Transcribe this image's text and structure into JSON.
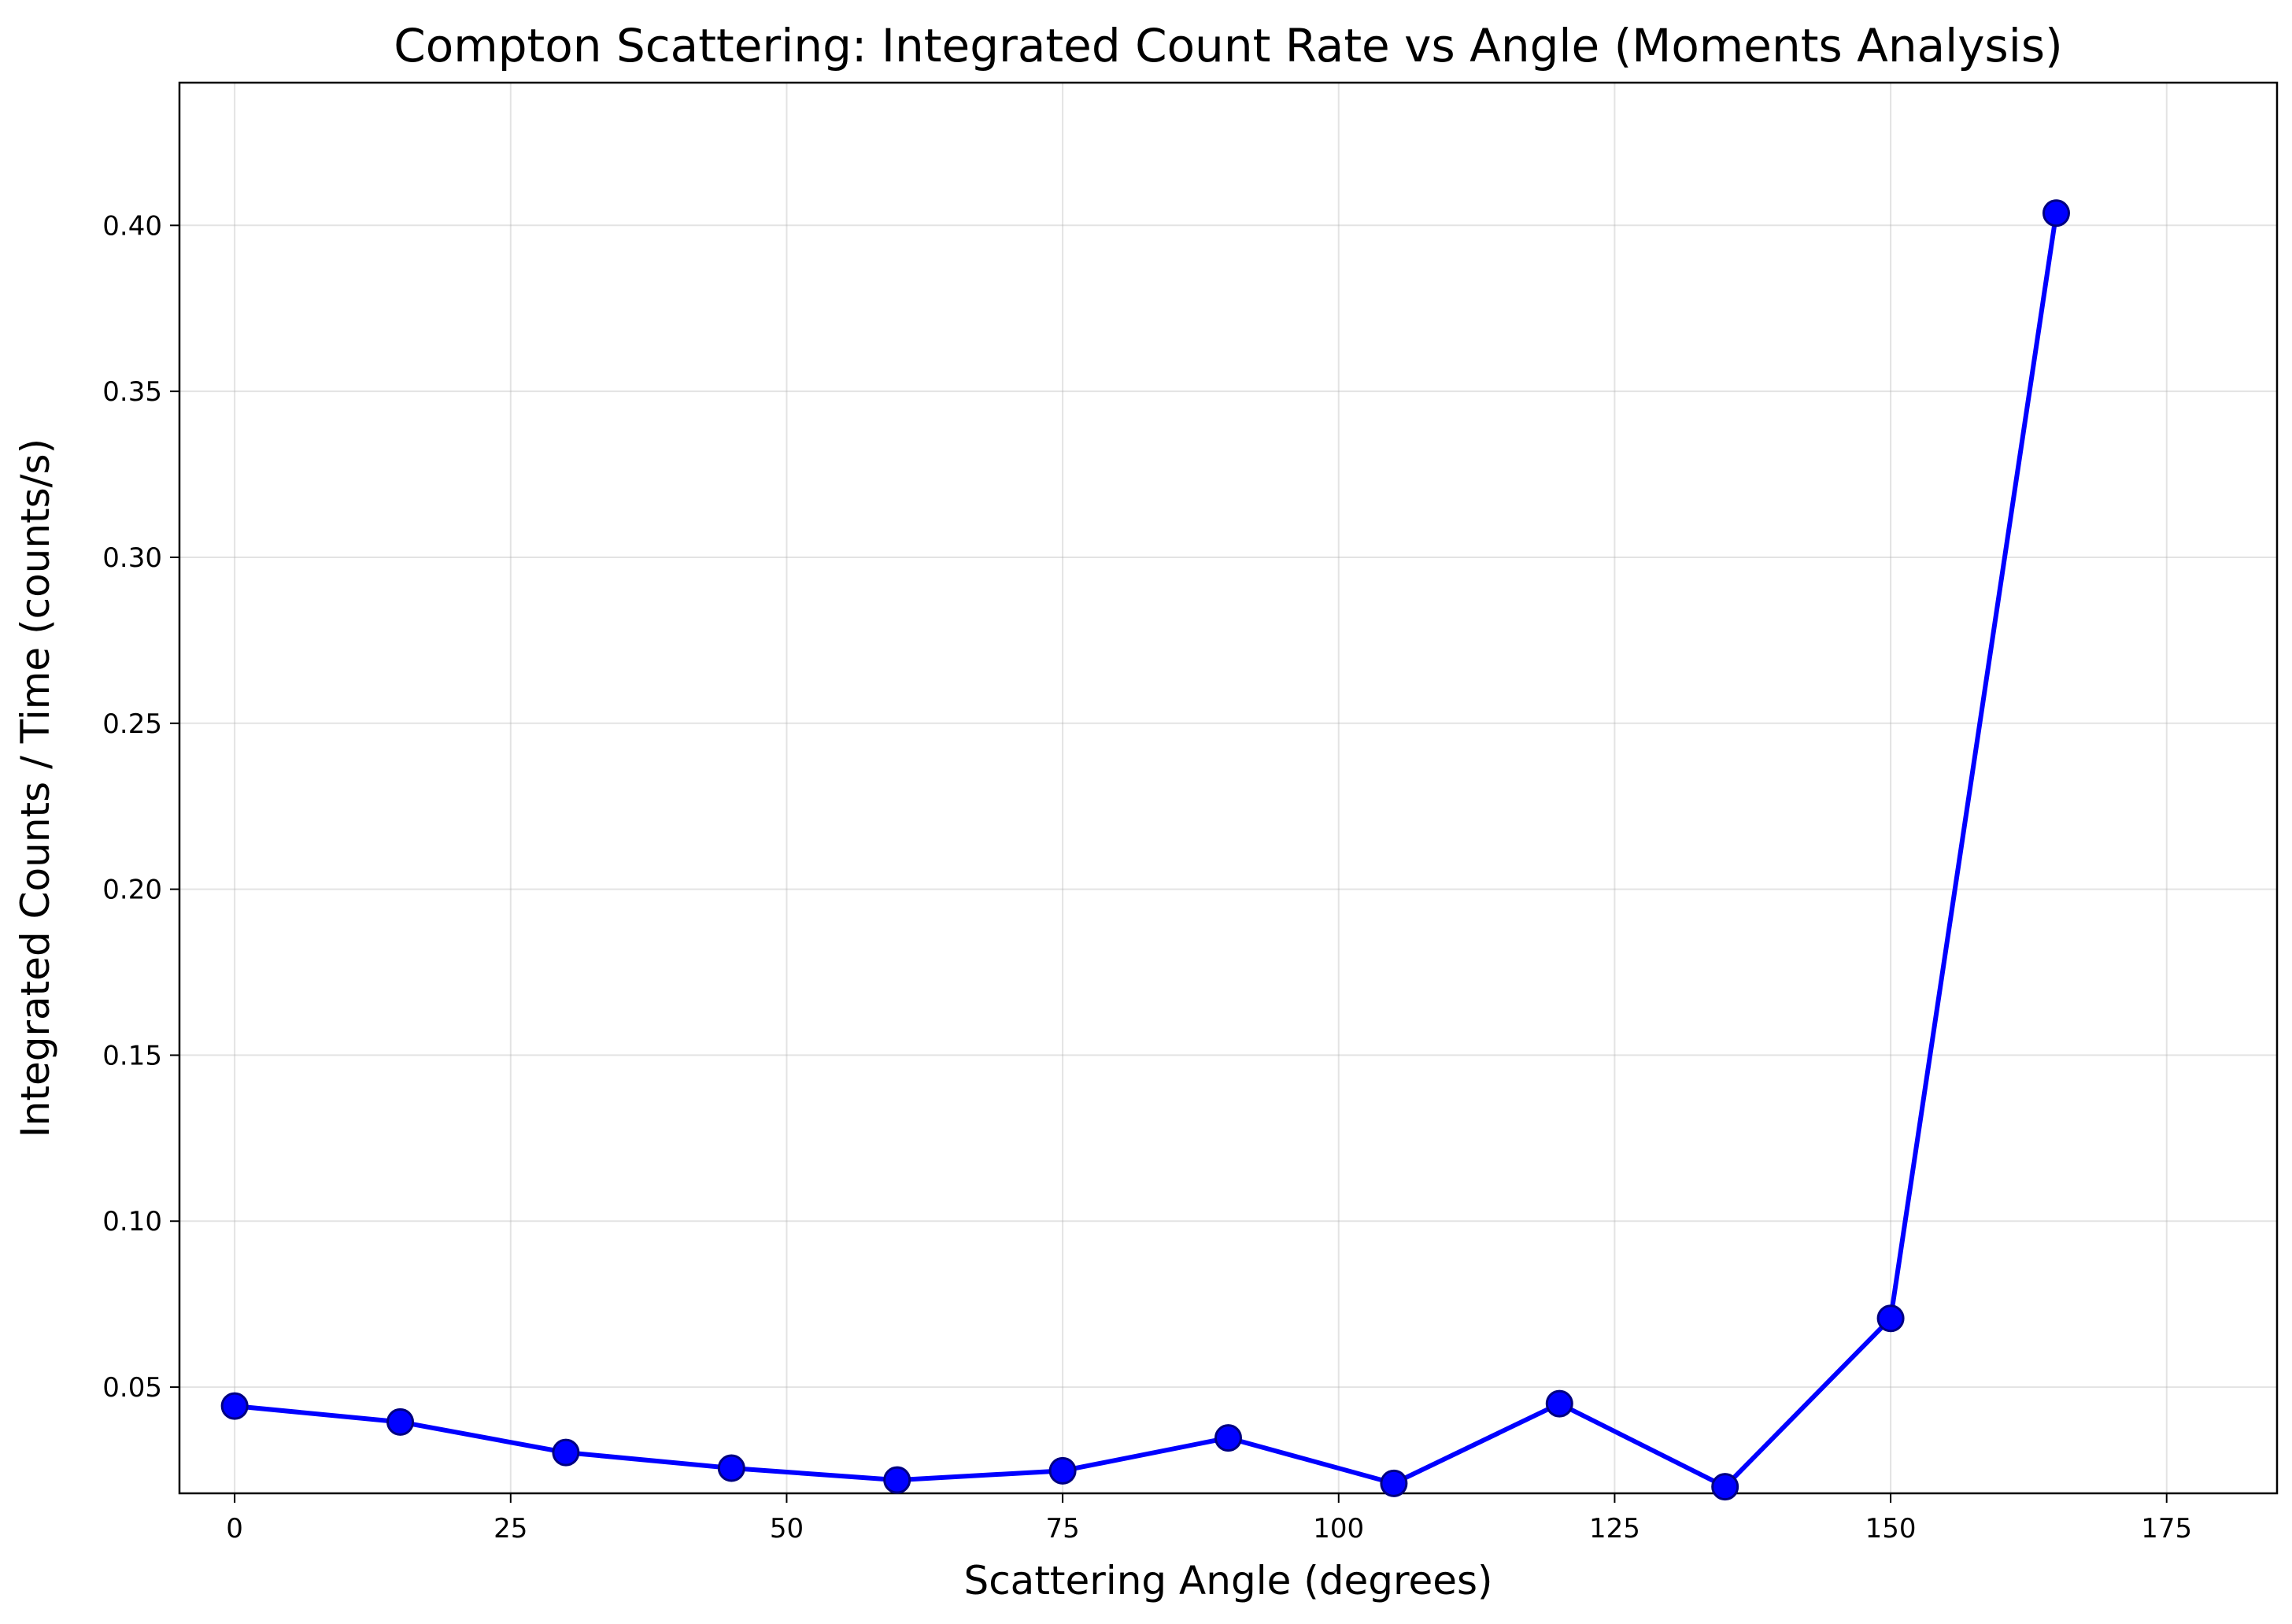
{
  "chart_data": {
    "type": "line",
    "title": "Compton Scattering: Integrated Count Rate vs Angle (Moments Analysis)",
    "xlabel": "Scattering Angle (degrees)",
    "ylabel": "Integrated Counts / Time (counts/s)",
    "xlim": [
      -5,
      185
    ],
    "ylim": [
      0.018,
      0.443
    ],
    "xticks": [
      0,
      25,
      50,
      75,
      100,
      125,
      150,
      175
    ],
    "yticks": [
      0.05,
      0.1,
      0.15,
      0.2,
      0.25,
      0.3,
      0.35,
      0.4
    ],
    "xtick_labels": [
      "0",
      "25",
      "50",
      "75",
      "100",
      "125",
      "150",
      "175"
    ],
    "ytick_labels": [
      "0.05",
      "0.10",
      "0.15",
      "0.20",
      "0.25",
      "0.30",
      "0.35",
      "0.40"
    ],
    "grid": true,
    "series": [
      {
        "x": [
          0,
          15,
          30,
          45,
          60,
          75,
          90,
          105,
          120,
          135,
          150,
          165
        ],
        "y": [
          0.0443,
          0.0395,
          0.0303,
          0.0256,
          0.022,
          0.0248,
          0.0347,
          0.021,
          0.045,
          0.02,
          0.0707,
          0.4037
        ],
        "color": "#0000ff",
        "marker_edge": "#000080"
      }
    ]
  }
}
